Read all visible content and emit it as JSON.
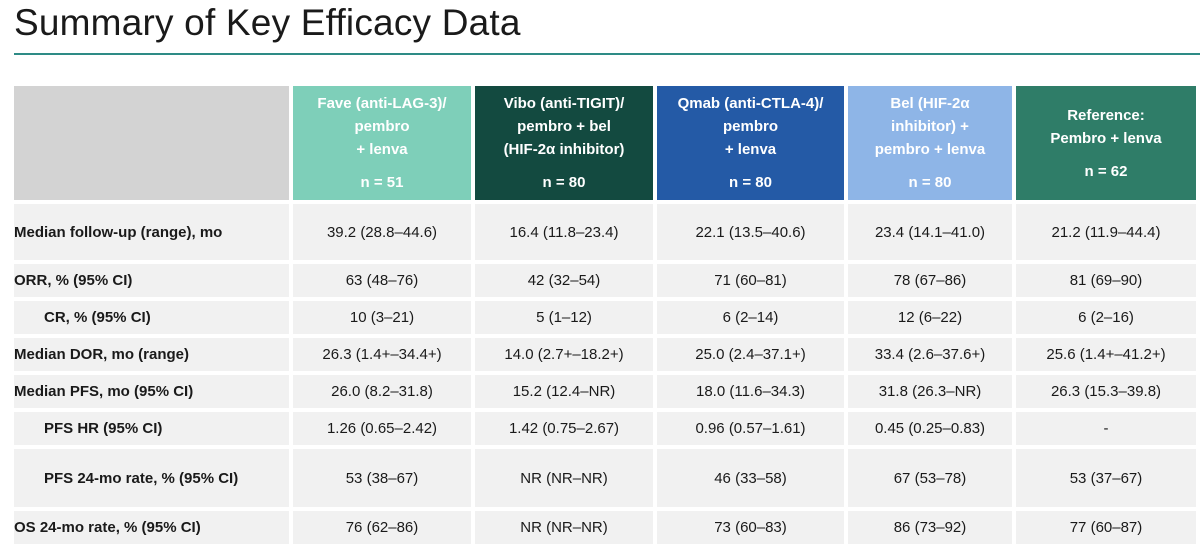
{
  "slide": {
    "title": "Summary of Key Efficacy Data"
  },
  "table": {
    "columns": [
      {
        "lines": [
          "Fave (anti-LAG-3)/",
          "pembro",
          "+ lenva"
        ],
        "n": "n = 51",
        "color": "#7ecfb9"
      },
      {
        "lines": [
          "Vibo (anti-TIGIT)/",
          "pembro + bel",
          "(HIF-2α inhibitor)"
        ],
        "n": "n = 80",
        "color": "#134a40"
      },
      {
        "lines": [
          "Qmab (anti-CTLA-4)/",
          "pembro",
          "+ lenva"
        ],
        "n": "n = 80",
        "color": "#245aa6"
      },
      {
        "lines": [
          "Bel (HIF-2α",
          "inhibitor) +",
          "pembro + lenva"
        ],
        "n": "n = 80",
        "color": "#8eb5e7"
      },
      {
        "lines": [
          "Reference:",
          "Pembro + lenva"
        ],
        "n": "n = 62",
        "color": "#2f7d68"
      }
    ],
    "rows": [
      {
        "label": "Median follow-up (range), mo",
        "values": [
          "39.2 (28.8–44.6)",
          "16.4 (11.8–23.4)",
          "22.1 (13.5–40.6)",
          "23.4 (14.1–41.0)",
          "21.2 (11.9–44.4)"
        ]
      },
      {
        "label": "ORR, % (95% CI)",
        "values": [
          "63 (48–76)",
          "42 (32–54)",
          "71 (60–81)",
          "78 (67–86)",
          "81 (69–90)"
        ]
      },
      {
        "label": "CR, % (95% CI)",
        "values": [
          "10 (3–21)",
          "5 (1–12)",
          "6 (2–14)",
          "12 (6–22)",
          "6 (2–16)"
        ]
      },
      {
        "label": "Median DOR, mo (range)",
        "values": [
          "26.3 (1.4+–34.4+)",
          "14.0 (2.7+–18.2+)",
          "25.0 (2.4–37.1+)",
          "33.4 (2.6–37.6+)",
          "25.6 (1.4+–41.2+)"
        ]
      },
      {
        "label": "Median PFS, mo (95% CI)",
        "values": [
          "26.0 (8.2–31.8)",
          "15.2 (12.4–NR)",
          "18.0 (11.6–34.3)",
          "31.8 (26.3–NR)",
          "26.3 (15.3–39.8)"
        ]
      },
      {
        "label": "PFS HR (95% CI)",
        "values": [
          "1.26 (0.65–2.42)",
          "1.42 (0.75–2.67)",
          "0.96 (0.57–1.61)",
          "0.45 (0.25–0.83)",
          "-"
        ]
      },
      {
        "label": "PFS 24-mo rate, % (95% CI)",
        "values": [
          "53 (38–67)",
          "NR (NR–NR)",
          "46 (33–58)",
          "67 (53–78)",
          "53 (37–67)"
        ]
      },
      {
        "label": "OS 24-mo rate, % (95% CI)",
        "values": [
          "76 (62–86)",
          "NR (NR–NR)",
          "73 (60–83)",
          "86 (73–92)",
          "77 (60–87)"
        ]
      }
    ]
  }
}
